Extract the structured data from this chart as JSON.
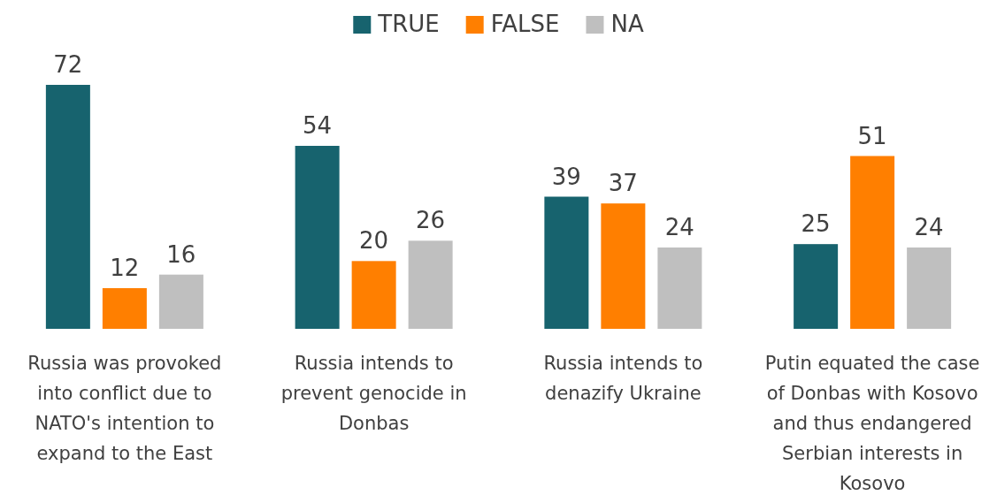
{
  "chart_data": {
    "type": "bar",
    "categories": [
      "Russia was provoked into conflict due to NATO's intention to expand to the East",
      "Russia intends to prevent genocide in Donbas",
      "Russia intends to denazify Ukraine",
      "Putin equated the case of Donbas with Kosovo and thus endangered Serbian interests in Kosovo"
    ],
    "series": [
      {
        "name": "TRUE",
        "color": "#17636e",
        "values": [
          72,
          54,
          39,
          25
        ]
      },
      {
        "name": "FALSE",
        "color": "#ff7f00",
        "values": [
          12,
          20,
          37,
          51
        ]
      },
      {
        "name": "NA",
        "color": "#bfbfbf",
        "values": [
          16,
          26,
          24,
          24
        ]
      }
    ],
    "data_labels": true,
    "legend": "top",
    "grid": false
  }
}
